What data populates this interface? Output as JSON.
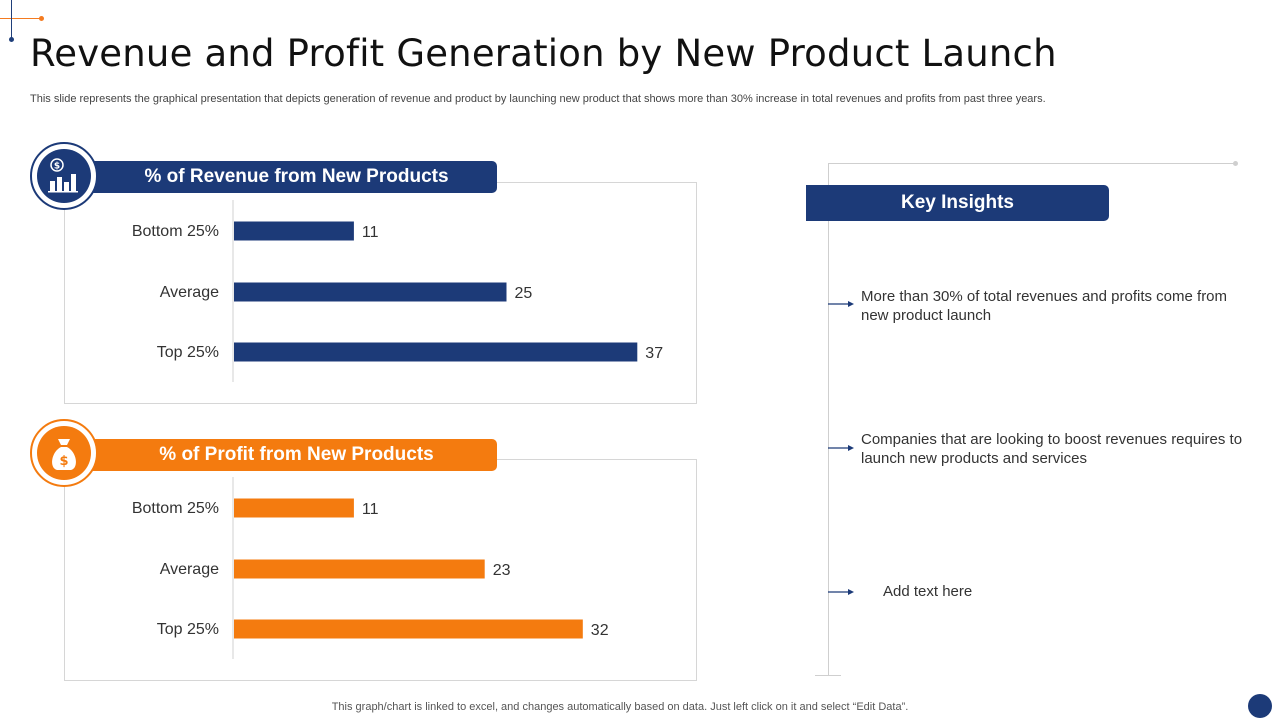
{
  "slide": {
    "title": "Revenue and Profit Generation by New Product Launch",
    "subtitle": "This slide represents the graphical presentation that depicts generation of revenue and product by launching new product that shows more than 30% increase in total revenues and profits from past three years.",
    "footer": "This graph/chart is linked to excel, and changes automatically based on data. Just left click on it and select “Edit Data”."
  },
  "colors": {
    "navy": "#1c3a78",
    "orange": "#f47b0f"
  },
  "icons": {
    "revenue": "money-bar-chart-icon",
    "profit": "money-bag-icon"
  },
  "revenue_panel": {
    "header": "% of Revenue from New Products"
  },
  "profit_panel": {
    "header": "% of Profit from New Products"
  },
  "insights": {
    "header": "Key Insights",
    "items": [
      "More than 30% of total revenues and profits come from new product launch",
      "Companies that are looking to boost revenues requires to launch new products and services",
      "Add text here"
    ]
  },
  "chart_data": [
    {
      "type": "bar",
      "orientation": "horizontal",
      "title": "% of Revenue from New Products",
      "categories": [
        "Bottom 25%",
        "Average",
        "Top 25%"
      ],
      "values": [
        11,
        25,
        37
      ],
      "color": "#1c3a78",
      "grid": false,
      "data_labels": true
    },
    {
      "type": "bar",
      "orientation": "horizontal",
      "title": "% of Profit from New Products",
      "categories": [
        "Bottom 25%",
        "Average",
        "Top 25%"
      ],
      "values": [
        11,
        23,
        32
      ],
      "color": "#f47b0f",
      "grid": false,
      "data_labels": true
    }
  ]
}
